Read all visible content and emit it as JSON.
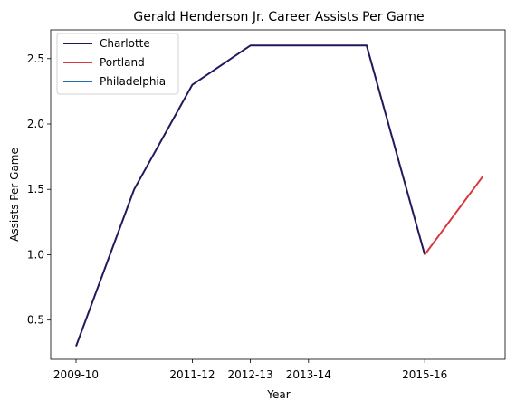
{
  "chart_data": {
    "type": "line",
    "title": "Gerald Henderson Jr. Career Assists Per Game",
    "xlabel": "Year",
    "ylabel": "Assists Per Game",
    "ylim": [
      0.2,
      2.72
    ],
    "x_ticks": [
      "2009-10",
      "2011-12",
      "2012-13",
      "2013-14",
      "2015-16"
    ],
    "y_ticks": [
      "0.5",
      "1.0",
      "1.5",
      "2.0",
      "2.5"
    ],
    "legend_position": "top-left",
    "series": [
      {
        "name": "Charlotte",
        "color": "#1f1a5c",
        "points": [
          {
            "x": 0,
            "y": 0.3
          },
          {
            "x": 1,
            "y": 1.5
          },
          {
            "x": 2,
            "y": 2.3
          },
          {
            "x": 3,
            "y": 2.6
          },
          {
            "x": 4,
            "y": 2.6
          },
          {
            "x": 5,
            "y": 2.6
          },
          {
            "x": 6,
            "y": 1.0
          }
        ]
      },
      {
        "name": "Portland",
        "color": "#d8393f",
        "points": [
          {
            "x": 6,
            "y": 1.0
          },
          {
            "x": 7,
            "y": 1.6
          }
        ]
      },
      {
        "name": "Philadelphia",
        "color": "#1f6fb2",
        "points": []
      }
    ]
  }
}
